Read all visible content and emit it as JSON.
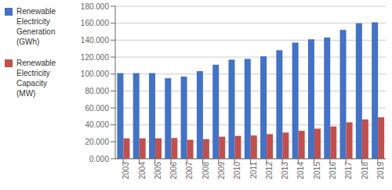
{
  "chart_data": {
    "type": "bar",
    "categories": [
      "2003",
      "2004",
      "2005",
      "2006",
      "2007",
      "2008",
      "2009",
      "2010",
      "2011",
      "2012",
      "2013",
      "2014",
      "2015",
      "2016",
      "2017",
      "2018",
      "2019"
    ],
    "series": [
      {
        "name": "Renewable\nElectricity\nGeneration\n(GWh)",
        "color": "#4472C4",
        "values": [
          101000,
          101000,
          101000,
          95000,
          97000,
          103500,
          111000,
          117000,
          118000,
          121000,
          128000,
          137000,
          141000,
          143000,
          152000,
          160000,
          161000
        ]
      },
      {
        "name": "Renewable\nElectricity\nCapacity\n(MW)",
        "color": "#C0504D",
        "values": [
          24000,
          24000,
          24000,
          24500,
          22500,
          23000,
          26000,
          27000,
          27500,
          29000,
          31000,
          33000,
          35500,
          38000,
          43000,
          46500,
          49000
        ]
      }
    ],
    "ylim": [
      0,
      180000
    ],
    "yticks": [
      {
        "value": 0,
        "label": "0.000"
      },
      {
        "value": 20000,
        "label": "20.000"
      },
      {
        "value": 40000,
        "label": "40.000"
      },
      {
        "value": 60000,
        "label": "60.000"
      },
      {
        "value": 80000,
        "label": "80.000"
      },
      {
        "value": 100000,
        "label": "100.000"
      },
      {
        "value": 120000,
        "label": "120.000"
      },
      {
        "value": 140000,
        "label": "140.000"
      },
      {
        "value": 160000,
        "label": "160.000"
      },
      {
        "value": 180000,
        "label": "180.000"
      }
    ],
    "grid": true,
    "legend": "left"
  }
}
